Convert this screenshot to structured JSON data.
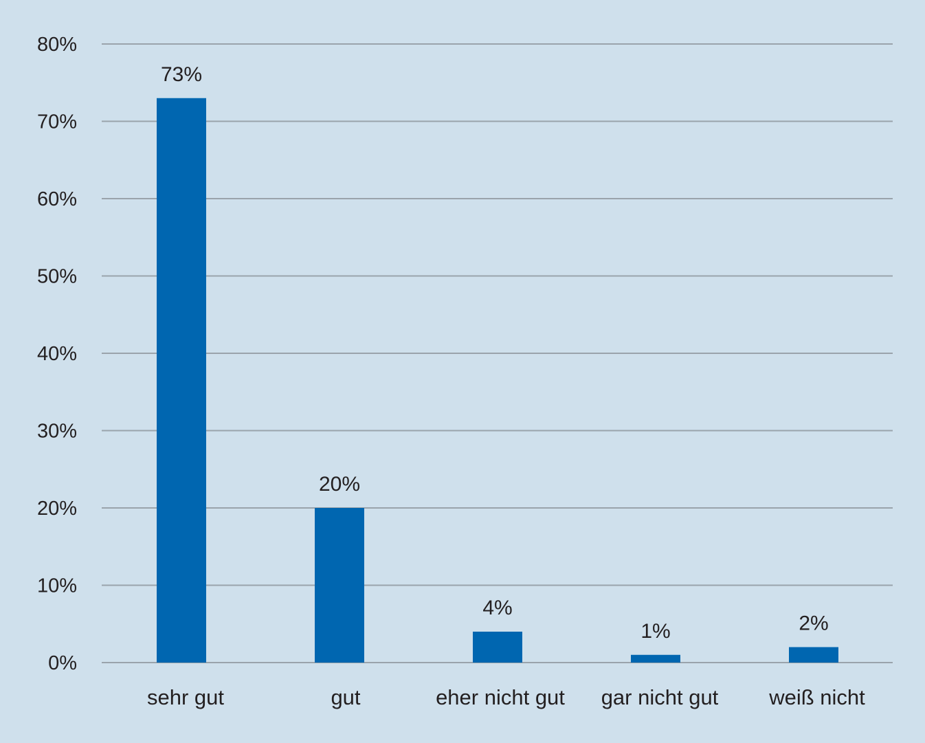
{
  "chart_data": {
    "type": "bar",
    "categories": [
      "sehr gut",
      "gut",
      "eher nicht gut",
      "gar nicht gut",
      "weiß nicht"
    ],
    "values": [
      73,
      20,
      4,
      1,
      2
    ],
    "data_labels": [
      "73%",
      "20%",
      "4%",
      "1%",
      "2%"
    ],
    "title": "",
    "xlabel": "",
    "ylabel": "",
    "ylim": [
      0,
      80
    ],
    "y_ticks": [
      0,
      10,
      20,
      30,
      40,
      50,
      60,
      70,
      80
    ],
    "y_tick_labels": [
      "0%",
      "10%",
      "20%",
      "30%",
      "40%",
      "50%",
      "60%",
      "70%",
      "80%"
    ],
    "grid": true,
    "legend": "none",
    "colors": {
      "bar": "#0066b0",
      "background": "#cfe0ec",
      "gridline": "#9aa3ab",
      "text": "#231f20"
    }
  }
}
